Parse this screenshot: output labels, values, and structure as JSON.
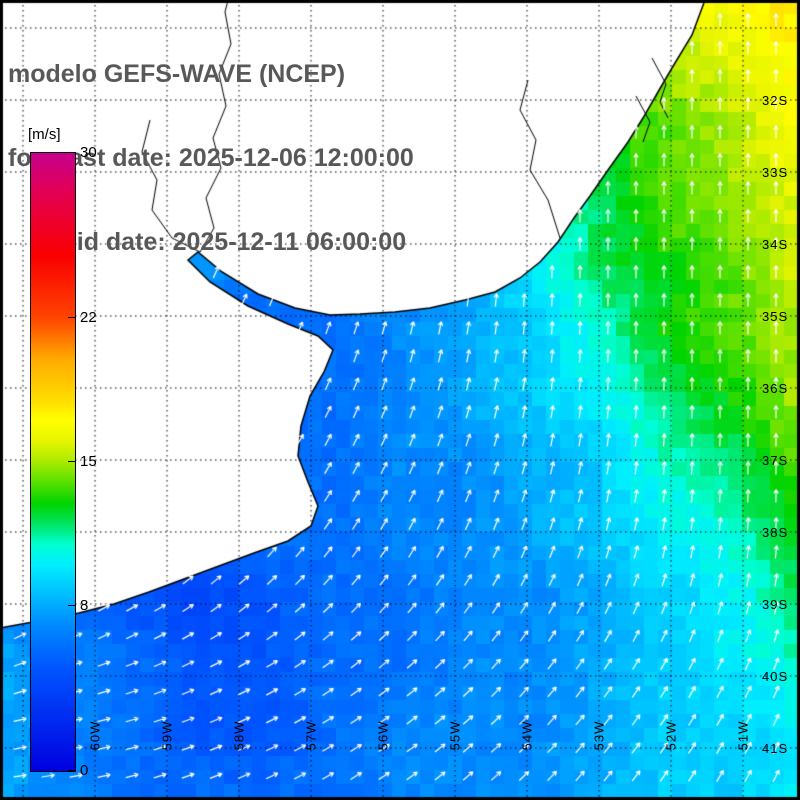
{
  "title": {
    "line1": "modelo GEFS-WAVE (NCEP)",
    "line2": "forecast date: 2025-12-06 12:00:00",
    "line3": "valid date: 2025-12-11 06:00:00"
  },
  "colorbar": {
    "unit_label": "[m/s]",
    "min": 0,
    "max": 30,
    "ticks": [
      {
        "label": "30",
        "value": 30
      },
      {
        "label": "22",
        "value": 22
      },
      {
        "label": "15",
        "value": 15
      },
      {
        "label": "8",
        "value": 8
      },
      {
        "label": "0",
        "value": 0
      }
    ]
  },
  "axes": {
    "lat_labels": [
      "32S",
      "33S",
      "34S",
      "35S",
      "36S",
      "37S",
      "38S",
      "39S",
      "40S",
      "41S"
    ],
    "lon_labels": [
      "60W",
      "59W",
      "58W",
      "57W",
      "56W",
      "55W",
      "54W",
      "53W",
      "52W",
      "51W"
    ]
  },
  "chart_data": {
    "type": "heatmap",
    "units": "m/s",
    "value_range": [
      0,
      30
    ],
    "legend_position": "left",
    "grid": "dotted",
    "values": [
      [
        5,
        5,
        5,
        5,
        5,
        5,
        6,
        8,
        11,
        14,
        16,
        17,
        18
      ],
      [
        5,
        5,
        5,
        5,
        5,
        5,
        6,
        8,
        11,
        13,
        15,
        16,
        17
      ],
      [
        5,
        5,
        5,
        5,
        5,
        5,
        6,
        8,
        10,
        13,
        14,
        15,
        17
      ],
      [
        5,
        5,
        5,
        5,
        5,
        6,
        7,
        8,
        10,
        12,
        14,
        15,
        16
      ],
      [
        8,
        6,
        5,
        8,
        6,
        6,
        7,
        8,
        10,
        12,
        13,
        14,
        16
      ],
      [
        6,
        6,
        5,
        5,
        6,
        6,
        7,
        8,
        9,
        11,
        13,
        14,
        15
      ],
      [
        5,
        5,
        5,
        5,
        6,
        6,
        7,
        8,
        9,
        10,
        12,
        13,
        15
      ],
      [
        5,
        5,
        5,
        6,
        6,
        6,
        7,
        7,
        8,
        9,
        11,
        12,
        14
      ],
      [
        6,
        6,
        5,
        6,
        6,
        6,
        7,
        7,
        8,
        9,
        10,
        11,
        13
      ],
      [
        7,
        6,
        5,
        4,
        5,
        6,
        6,
        7,
        7,
        8,
        9,
        10,
        12
      ],
      [
        8,
        7,
        6,
        5,
        5,
        6,
        6,
        7,
        7,
        8,
        9,
        10,
        11
      ],
      [
        8,
        7,
        6,
        5,
        5,
        6,
        7,
        7,
        7,
        8,
        9,
        9,
        10
      ],
      [
        8,
        7,
        6,
        6,
        6,
        6,
        7,
        7,
        7,
        8,
        9,
        9,
        10
      ]
    ],
    "directions_deg": [
      [
        90,
        90,
        90,
        90,
        90,
        90,
        90,
        90,
        90,
        90,
        90,
        90,
        90
      ],
      [
        90,
        90,
        90,
        90,
        90,
        90,
        90,
        90,
        90,
        90,
        90,
        90,
        90
      ],
      [
        80,
        80,
        80,
        80,
        80,
        80,
        85,
        85,
        88,
        90,
        90,
        90,
        90
      ],
      [
        70,
        70,
        70,
        70,
        75,
        80,
        85,
        85,
        88,
        90,
        90,
        90,
        90
      ],
      [
        60,
        60,
        60,
        65,
        70,
        75,
        80,
        85,
        88,
        90,
        90,
        90,
        90
      ],
      [
        55,
        55,
        55,
        60,
        65,
        70,
        75,
        80,
        85,
        88,
        90,
        90,
        90
      ],
      [
        50,
        50,
        50,
        55,
        60,
        65,
        70,
        75,
        80,
        85,
        88,
        90,
        90
      ],
      [
        45,
        45,
        45,
        50,
        55,
        60,
        65,
        70,
        75,
        80,
        85,
        88,
        90
      ],
      [
        40,
        40,
        40,
        45,
        50,
        55,
        60,
        65,
        70,
        75,
        80,
        85,
        88
      ],
      [
        30,
        30,
        30,
        35,
        40,
        45,
        50,
        55,
        60,
        65,
        70,
        75,
        80
      ],
      [
        20,
        20,
        20,
        25,
        30,
        35,
        40,
        45,
        50,
        55,
        60,
        65,
        70
      ],
      [
        10,
        10,
        15,
        20,
        25,
        30,
        35,
        40,
        45,
        50,
        55,
        60,
        65
      ],
      [
        5,
        10,
        15,
        20,
        25,
        30,
        35,
        40,
        45,
        50,
        55,
        60,
        65
      ]
    ],
    "colormap": [
      {
        "v": 0,
        "c": "#0000e0"
      },
      {
        "v": 5,
        "c": "#0055ff"
      },
      {
        "v": 7,
        "c": "#0088ff"
      },
      {
        "v": 8,
        "c": "#00aaff"
      },
      {
        "v": 9,
        "c": "#00ccff"
      },
      {
        "v": 10,
        "c": "#00eeff"
      },
      {
        "v": 11,
        "c": "#00ffd0"
      },
      {
        "v": 12,
        "c": "#00e460"
      },
      {
        "v": 13,
        "c": "#00d400"
      },
      {
        "v": 14,
        "c": "#58e000"
      },
      {
        "v": 15,
        "c": "#a8ea00"
      },
      {
        "v": 16,
        "c": "#e6f400"
      },
      {
        "v": 17,
        "c": "#ffff00"
      },
      {
        "v": 18,
        "c": "#ffdd00"
      },
      {
        "v": 20,
        "c": "#ffaa00"
      },
      {
        "v": 22,
        "c": "#ff4400"
      },
      {
        "v": 25,
        "c": "#fa0000"
      },
      {
        "v": 28,
        "c": "#e40050"
      },
      {
        "v": 30,
        "c": "#c6008e"
      }
    ]
  },
  "map": {
    "land_polygon": [
      [
        705,
        0
      ],
      [
        692,
        35
      ],
      [
        672,
        68
      ],
      [
        658,
        92
      ],
      [
        643,
        118
      ],
      [
        628,
        142
      ],
      [
        608,
        170
      ],
      [
        590,
        196
      ],
      [
        574,
        218
      ],
      [
        558,
        242
      ],
      [
        540,
        262
      ],
      [
        520,
        278
      ],
      [
        495,
        292
      ],
      [
        465,
        300
      ],
      [
        430,
        308
      ],
      [
        395,
        312
      ],
      [
        360,
        314
      ],
      [
        330,
        315
      ],
      [
        295,
        308
      ],
      [
        258,
        294
      ],
      [
        222,
        272
      ],
      [
        198,
        252
      ],
      [
        188,
        260
      ],
      [
        210,
        282
      ],
      [
        248,
        306
      ],
      [
        288,
        324
      ],
      [
        318,
        336
      ],
      [
        333,
        350
      ],
      [
        324,
        372
      ],
      [
        310,
        396
      ],
      [
        301,
        426
      ],
      [
        298,
        456
      ],
      [
        308,
        482
      ],
      [
        318,
        506
      ],
      [
        311,
        526
      ],
      [
        288,
        541
      ],
      [
        254,
        553
      ],
      [
        219,
        566
      ],
      [
        184,
        579
      ],
      [
        149,
        592
      ],
      [
        114,
        604
      ],
      [
        79,
        613
      ],
      [
        44,
        620
      ],
      [
        0,
        628
      ],
      [
        0,
        0
      ]
    ],
    "border_lines": [
      [
        [
          200,
          252
        ],
        [
          214,
          228
        ],
        [
          206,
          198
        ],
        [
          221,
          168
        ],
        [
          213,
          138
        ],
        [
          226,
          106
        ],
        [
          219,
          74
        ],
        [
          231,
          44
        ],
        [
          225,
          12
        ],
        [
          228,
          0
        ]
      ],
      [
        [
          200,
          252
        ],
        [
          172,
          238
        ],
        [
          152,
          210
        ],
        [
          157,
          180
        ],
        [
          142,
          152
        ],
        [
          150,
          120
        ]
      ],
      [
        [
          652,
          58
        ],
        [
          666,
          84
        ],
        [
          660,
          102
        ],
        [
          668,
          118
        ]
      ],
      [
        [
          636,
          96
        ],
        [
          650,
          122
        ],
        [
          643,
          142
        ]
      ],
      [
        [
          560,
          238
        ],
        [
          548,
          200
        ],
        [
          530,
          170
        ],
        [
          536,
          140
        ],
        [
          520,
          110
        ],
        [
          528,
          80
        ]
      ]
    ]
  }
}
